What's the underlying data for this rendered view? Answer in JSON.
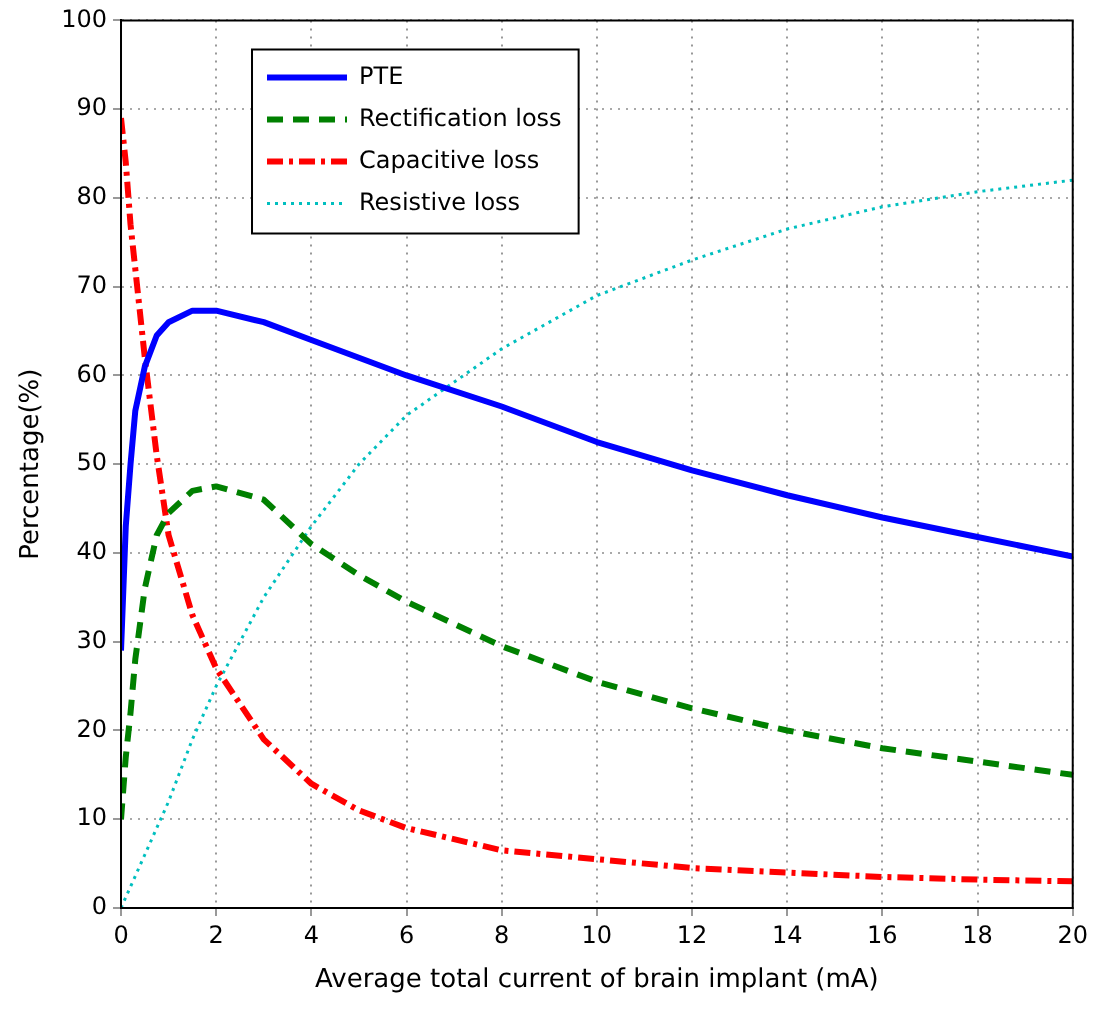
{
  "chart_data": {
    "type": "line",
    "xlabel": "Average total current of brain implant (mA)",
    "ylabel": "Percentage(%)",
    "xlim": [
      0,
      20
    ],
    "xticks": [
      0,
      2,
      4,
      6,
      8,
      10,
      12,
      14,
      16,
      18,
      20
    ],
    "ylim": [
      0,
      100
    ],
    "yticks": [
      0,
      10,
      20,
      30,
      40,
      50,
      60,
      70,
      80,
      90,
      100
    ],
    "grid": true,
    "legend": "top left",
    "marker": "none",
    "series": [
      {
        "name": "PTE",
        "color": "#0000ff",
        "line_style": "solid",
        "x": [
          0,
          0.1,
          0.2,
          0.3,
          0.5,
          0.75,
          1,
          1.5,
          2,
          3,
          4,
          5,
          6,
          8,
          10,
          12,
          14,
          16,
          18,
          20
        ],
        "values": [
          29,
          43,
          50,
          56,
          61,
          64.5,
          66,
          67.3,
          67.3,
          66,
          64,
          62,
          60,
          56.5,
          52.5,
          49.3,
          46.5,
          44,
          41.8,
          39.6
        ]
      },
      {
        "name": "Rectification loss",
        "color": "#008000",
        "line_style": "dashed",
        "x": [
          0,
          0.1,
          0.2,
          0.3,
          0.5,
          0.75,
          1,
          1.5,
          2,
          3,
          4,
          5,
          6,
          8,
          10,
          12,
          14,
          16,
          18,
          20
        ],
        "values": [
          10,
          17,
          22,
          28,
          36,
          42,
          44.5,
          47,
          47.5,
          46,
          41,
          37.5,
          34.5,
          29.5,
          25.5,
          22.5,
          20,
          18,
          16.5,
          15
        ]
      },
      {
        "name": "Capacitive loss",
        "color": "#ff0000",
        "line_style": "dashdot",
        "x": [
          0,
          0.1,
          0.2,
          0.3,
          0.5,
          0.75,
          1,
          1.5,
          2,
          3,
          4,
          5,
          6,
          8,
          10,
          12,
          14,
          16,
          18,
          20
        ],
        "values": [
          89,
          84,
          77,
          72,
          62,
          51,
          42,
          33,
          27,
          19,
          14,
          11,
          9,
          6.5,
          5.5,
          4.5,
          4,
          3.5,
          3.2,
          3
        ]
      },
      {
        "name": "Resistive loss",
        "color": "#00bfbf",
        "line_style": "dotted",
        "x": [
          0,
          0.5,
          1,
          1.5,
          2,
          3,
          4,
          5,
          6,
          8,
          10,
          12,
          14,
          16,
          18,
          20
        ],
        "values": [
          0,
          6,
          12,
          19,
          25,
          35,
          43,
          50,
          55.5,
          63,
          69,
          73,
          76.5,
          79,
          80.7,
          82
        ]
      }
    ]
  }
}
